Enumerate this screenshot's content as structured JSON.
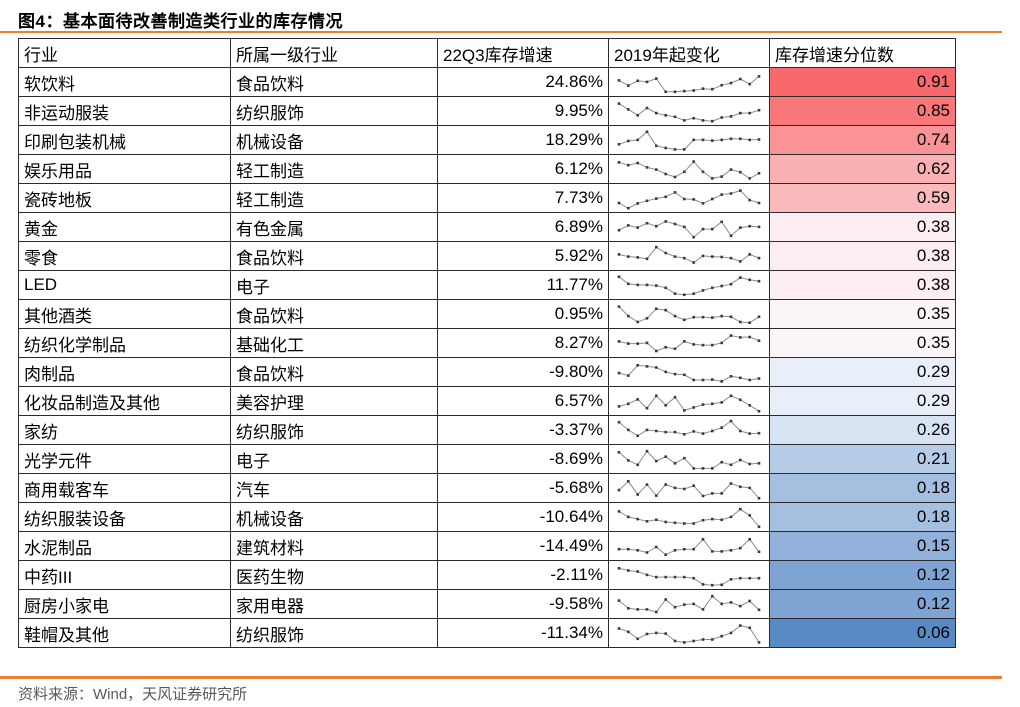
{
  "title": "图4：基本面待改善制造类行业的库存情况",
  "footer": "资料来源：Wind，天风证券研究所",
  "accent_color": "#E87E2E",
  "spark_line_color": "#8c8c8c",
  "spark_dot_color": "#3a3a3a",
  "chart_data": {
    "type": "table",
    "title": "图4：基本面待改善制造类行业的库存情况",
    "columns": [
      "行业",
      "所属一级行业",
      "22Q3库存增速",
      "2019年起变化",
      "库存增速分位数"
    ],
    "heat_scale": {
      "high": "#F8696B",
      "mid": "#FCFCFF",
      "low": "#5A8AC6"
    },
    "sparkline_note": "2019年起变化列为各行业2019年以来库存增速走势小折线图，spark为0-1归一化估值，1为最高",
    "rows": [
      {
        "industry": "软饮料",
        "sector": "食品饮料",
        "growth": "24.86%",
        "percentile": "0.91",
        "cell_color": "#F8696B",
        "spark": [
          0.62,
          0.38,
          0.6,
          0.55,
          0.7,
          0.1,
          0.1,
          0.13,
          0.16,
          0.24,
          0.22,
          0.4,
          0.5,
          0.68,
          0.45,
          0.8
        ]
      },
      {
        "industry": "非运动服装",
        "sector": "纺织服饰",
        "growth": "9.95%",
        "percentile": "0.85",
        "cell_color": "#F8787A",
        "spark": [
          0.88,
          0.62,
          0.35,
          0.68,
          0.45,
          0.35,
          0.28,
          0.12,
          0.22,
          0.12,
          0.08,
          0.25,
          0.3,
          0.45,
          0.45,
          0.58
        ]
      },
      {
        "industry": "印刷包装机械",
        "sector": "机械设备",
        "growth": "18.29%",
        "percentile": "0.74",
        "cell_color": "#F99396",
        "spark": [
          0.35,
          0.5,
          0.55,
          0.92,
          0.28,
          0.18,
          0.12,
          0.12,
          0.55,
          0.55,
          0.52,
          0.55,
          0.6,
          0.6,
          0.55,
          0.57
        ]
      },
      {
        "industry": "娱乐用品",
        "sector": "轻工制造",
        "growth": "6.12%",
        "percentile": "0.62",
        "cell_color": "#FAB1B4",
        "spark": [
          0.85,
          0.72,
          0.82,
          0.62,
          0.52,
          0.32,
          0.18,
          0.42,
          0.88,
          0.42,
          0.12,
          0.2,
          0.52,
          0.4,
          0.12,
          0.35
        ]
      },
      {
        "industry": "瓷砖地板",
        "sector": "轻工制造",
        "growth": "7.73%",
        "percentile": "0.59",
        "cell_color": "#FAB9BB",
        "spark": [
          0.32,
          0.08,
          0.3,
          0.42,
          0.52,
          0.6,
          0.8,
          0.5,
          0.48,
          0.3,
          0.5,
          0.7,
          0.75,
          0.88,
          0.45,
          0.32
        ]
      },
      {
        "industry": "黄金",
        "sector": "有色金属",
        "growth": "6.89%",
        "percentile": "0.38",
        "cell_color": "#FCEDF0",
        "spark": [
          0.4,
          0.62,
          0.52,
          0.72,
          0.58,
          0.8,
          0.68,
          0.55,
          0.08,
          0.45,
          0.45,
          0.78,
          0.15,
          0.52,
          0.58,
          0.55
        ]
      },
      {
        "industry": "零食",
        "sector": "食品饮料",
        "growth": "5.92%",
        "percentile": "0.38",
        "cell_color": "#FCEDF0",
        "spark": [
          0.62,
          0.52,
          0.48,
          0.42,
          0.95,
          0.68,
          0.52,
          0.45,
          0.25,
          0.55,
          0.52,
          0.5,
          0.45,
          0.3,
          0.62,
          0.45
        ]
      },
      {
        "industry": "LED",
        "sector": "电子",
        "growth": "11.77%",
        "percentile": "0.38",
        "cell_color": "#FCEDF0",
        "spark": [
          0.92,
          0.6,
          0.55,
          0.55,
          0.52,
          0.42,
          0.15,
          0.1,
          0.15,
          0.3,
          0.42,
          0.5,
          0.58,
          0.88,
          0.78,
          0.72
        ]
      },
      {
        "industry": "其他酒类",
        "sector": "食品饮料",
        "growth": "0.95%",
        "percentile": "0.35",
        "cell_color": "#FCF5F7",
        "spark": [
          0.88,
          0.45,
          0.18,
          0.35,
          0.78,
          0.72,
          0.45,
          0.28,
          0.4,
          0.4,
          0.38,
          0.45,
          0.42,
          0.18,
          0.15,
          0.42
        ]
      },
      {
        "industry": "纺织化学制品",
        "sector": "基础化工",
        "growth": "8.27%",
        "percentile": "0.35",
        "cell_color": "#FCF5F7",
        "spark": [
          0.62,
          0.52,
          0.52,
          0.55,
          0.18,
          0.35,
          0.28,
          0.62,
          0.48,
          0.45,
          0.45,
          0.55,
          0.88,
          0.8,
          0.82,
          0.65
        ]
      },
      {
        "industry": "肉制品",
        "sector": "食品饮料",
        "growth": "-9.80%",
        "percentile": "0.29",
        "cell_color": "#E9EFF8",
        "spark": [
          0.5,
          0.38,
          0.85,
          0.8,
          0.75,
          0.55,
          0.45,
          0.42,
          0.18,
          0.18,
          0.2,
          0.12,
          0.35,
          0.28,
          0.18,
          0.25
        ]
      },
      {
        "industry": "化妆品制造及其他",
        "sector": "美容护理",
        "growth": "6.57%",
        "percentile": "0.29",
        "cell_color": "#E9EFF8",
        "spark": [
          0.3,
          0.42,
          0.62,
          0.22,
          0.78,
          0.35,
          0.72,
          0.12,
          0.25,
          0.38,
          0.42,
          0.48,
          0.78,
          0.6,
          0.35,
          0.08
        ]
      },
      {
        "industry": "家纺",
        "sector": "纺织服饰",
        "growth": "-3.37%",
        "percentile": "0.26",
        "cell_color": "#D7E2F2",
        "spark": [
          0.9,
          0.55,
          0.28,
          0.55,
          0.5,
          0.45,
          0.45,
          0.35,
          0.48,
          0.38,
          0.5,
          0.65,
          0.95,
          0.5,
          0.38,
          0.4
        ]
      },
      {
        "industry": "光学元件",
        "sector": "电子",
        "growth": "-8.69%",
        "percentile": "0.21",
        "cell_color": "#B7CCE7",
        "spark": [
          0.85,
          0.48,
          0.28,
          0.9,
          0.45,
          0.65,
          0.35,
          0.58,
          0.12,
          0.12,
          0.12,
          0.4,
          0.28,
          0.5,
          0.32,
          0.35
        ]
      },
      {
        "industry": "商用载客车",
        "sector": "汽车",
        "growth": "-5.68%",
        "percentile": "0.18",
        "cell_color": "#A5BFE0",
        "spark": [
          0.45,
          0.85,
          0.25,
          0.7,
          0.2,
          0.7,
          0.55,
          0.5,
          0.65,
          0.18,
          0.3,
          0.3,
          0.75,
          0.6,
          0.55,
          0.08
        ]
      },
      {
        "industry": "纺织服装设备",
        "sector": "机械设备",
        "growth": "-10.64%",
        "percentile": "0.18",
        "cell_color": "#A5BFE0",
        "spark": [
          0.8,
          0.55,
          0.45,
          0.35,
          0.42,
          0.32,
          0.28,
          0.25,
          0.25,
          0.4,
          0.45,
          0.42,
          0.55,
          0.9,
          0.62,
          0.1
        ]
      },
      {
        "industry": "水泥制品",
        "sector": "建筑材料",
        "growth": "-14.49%",
        "percentile": "0.15",
        "cell_color": "#92B1DA",
        "spark": [
          0.4,
          0.4,
          0.35,
          0.25,
          0.5,
          0.15,
          0.35,
          0.4,
          0.4,
          0.85,
          0.3,
          0.3,
          0.35,
          0.45,
          0.85,
          0.28
        ]
      },
      {
        "industry": "中药III",
        "sector": "医药生物",
        "growth": "-2.11%",
        "percentile": "0.12",
        "cell_color": "#7FA4D3",
        "spark": [
          0.85,
          0.75,
          0.7,
          0.55,
          0.45,
          0.45,
          0.45,
          0.45,
          0.4,
          0.12,
          0.08,
          0.1,
          0.35,
          0.4,
          0.4,
          0.4
        ]
      },
      {
        "industry": "厨房小家电",
        "sector": "家用电器",
        "growth": "-9.58%",
        "percentile": "0.12",
        "cell_color": "#7FA4D3",
        "spark": [
          0.7,
          0.35,
          0.3,
          0.3,
          0.18,
          0.75,
          0.4,
          0.52,
          0.55,
          0.3,
          0.9,
          0.55,
          0.62,
          0.45,
          0.68,
          0.28
        ]
      },
      {
        "industry": "鞋帽及其他",
        "sector": "纺织服饰",
        "growth": "-11.34%",
        "percentile": "0.06",
        "cell_color": "#5A8AC6",
        "spark": [
          0.75,
          0.6,
          0.28,
          0.5,
          0.55,
          0.52,
          0.18,
          0.12,
          0.18,
          0.25,
          0.25,
          0.4,
          0.55,
          0.88,
          0.78,
          0.12
        ]
      }
    ]
  }
}
